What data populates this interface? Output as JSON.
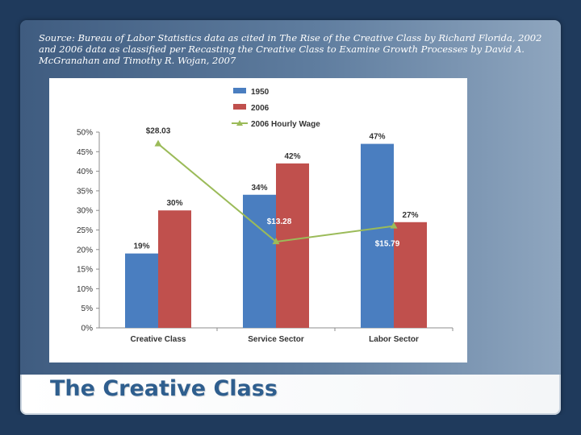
{
  "slide": {
    "source_note": "Source: Bureau of Labor Statistics data as cited in The Rise of the Creative Class by Richard Florida, 2002 and 2006 data as classified per Recasting the Creative Class to Examine Growth Processes by David A. McGranahan and Timothy R. Wojan, 2007",
    "title": "The Creative Class"
  },
  "colors": {
    "series_1950": "#4a7ec0",
    "series_2006": "#c0504d",
    "wage_line": "#9bbb59",
    "slide_title": "#2e5e8e"
  },
  "chart_data": {
    "type": "bar",
    "categories": [
      "Creative Class",
      "Service Sector",
      "Labor Sector"
    ],
    "series": [
      {
        "name": "1950",
        "values": [
          19,
          34,
          47
        ],
        "labels": [
          "19%",
          "34%",
          "47%"
        ]
      },
      {
        "name": "2006",
        "values": [
          30,
          42,
          27
        ],
        "labels": [
          "30%",
          "42%",
          "27%"
        ]
      }
    ],
    "line_series": {
      "name": "2006 Hourly Wage",
      "values": [
        28.03,
        13.28,
        15.79
      ],
      "labels": [
        "$28.03",
        "$13.28",
        "$15.79"
      ],
      "plotted_percent": [
        47,
        22,
        26
      ]
    },
    "ylim": [
      0,
      50
    ],
    "y_ticks": [
      "0%",
      "5%",
      "10%",
      "15%",
      "20%",
      "25%",
      "30%",
      "35%",
      "40%",
      "45%",
      "50%"
    ],
    "y_tick_values": [
      0,
      5,
      10,
      15,
      20,
      25,
      30,
      35,
      40,
      45,
      50
    ],
    "legend": [
      "1950",
      "2006",
      "2006 Hourly Wage"
    ],
    "legend_position": "top-center",
    "grid": false
  }
}
